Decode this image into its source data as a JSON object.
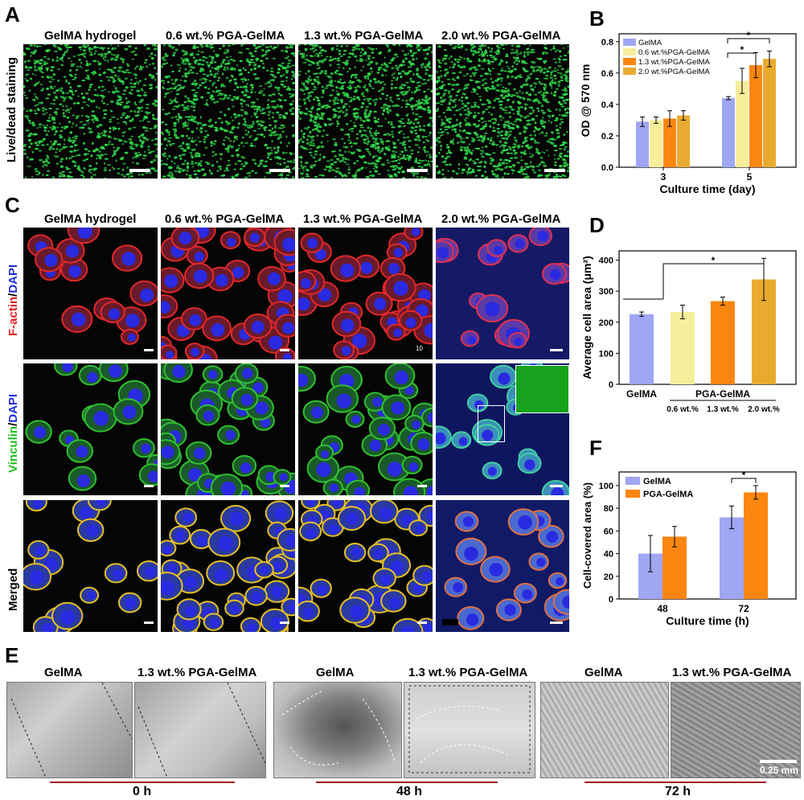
{
  "panels": {
    "A": "A",
    "B": "B",
    "C": "C",
    "D": "D",
    "E": "E",
    "F": "F"
  },
  "headers_AC": [
    "GelMA hydrogel",
    "0.6 wt.% PGA-GelMA",
    "1.3 wt.% PGA-GelMA",
    "2.0 wt.% PGA-GelMA"
  ],
  "row_label_A": "Live/dead staining",
  "row_C": {
    "r1a": "F-actin",
    "r1s": "/",
    "r1b": "DAPI",
    "r2a": "Vinculin",
    "r2s": "/",
    "r2b": "DAPI",
    "r3": "Merged"
  },
  "scale_10": "10",
  "headers_E": [
    "GelMA",
    "1.3 wt.% PGA-GelMA",
    "GelMA",
    "1.3 wt.% PGA-GelMA",
    "GelMA",
    "1.3 wt.% PGA-GelMA"
  ],
  "time_E": [
    "0 h",
    "48 h",
    "72 h"
  ],
  "scale_E": "0.25 mm",
  "colors": {
    "gelma": "#9fa6f2",
    "p06": "#f6ee9a",
    "p13": "#fb860f",
    "p20": "#e8ab30",
    "green": "#30d05a",
    "red": "#d93333",
    "blue": "#2a2ae0"
  },
  "chart_data": [
    {
      "id": "B",
      "type": "bar",
      "ylabel": "OD @ 570 nm",
      "xlabel": "Culture time (day)",
      "categories": [
        "3",
        "5"
      ],
      "yticks": [
        "0.0",
        "0.2",
        "0.4",
        "0.6",
        "0.8"
      ],
      "ylim": [
        0,
        0.85
      ],
      "series": [
        {
          "name": "GelMA",
          "values": [
            0.29,
            0.44
          ],
          "err": [
            0.03,
            0.01
          ]
        },
        {
          "name": "0.6 wt.%PGA-GelMA",
          "values": [
            0.3,
            0.55
          ],
          "err": [
            0.02,
            0.08
          ]
        },
        {
          "name": "1.3 wt.%PGA-GelMA",
          "values": [
            0.31,
            0.65
          ],
          "err": [
            0.05,
            0.08
          ]
        },
        {
          "name": "2.0 wt.%PGA-GelMA",
          "values": [
            0.33,
            0.69
          ],
          "err": [
            0.03,
            0.05
          ]
        }
      ],
      "sig": "*"
    },
    {
      "id": "D",
      "type": "bar",
      "ylabel": "Average cell area (μm²)",
      "categories": [
        "GelMA",
        "0.6 wt.%",
        "1.3 wt.%",
        "2.0 wt.%"
      ],
      "group_label": "PGA-GelMA",
      "values": [
        226,
        233,
        268,
        338
      ],
      "err": [
        7,
        22,
        13,
        68
      ],
      "yticks": [
        "0",
        "100",
        "200",
        "300",
        "400"
      ],
      "ylim": [
        0,
        430
      ],
      "sig": "*"
    },
    {
      "id": "F",
      "type": "bar",
      "ylabel": "Cell-covered area (%)",
      "xlabel": "Culture time (h)",
      "categories": [
        "48",
        "72"
      ],
      "yticks": [
        "0",
        "20",
        "40",
        "60",
        "80",
        "100"
      ],
      "ylim": [
        0,
        112
      ],
      "series": [
        {
          "name": "GelMA",
          "values": [
            40,
            72
          ],
          "err": [
            16,
            10
          ]
        },
        {
          "name": "PGA-GelMA",
          "values": [
            55,
            94
          ],
          "err": [
            9,
            6
          ]
        }
      ],
      "sig": "*"
    }
  ]
}
